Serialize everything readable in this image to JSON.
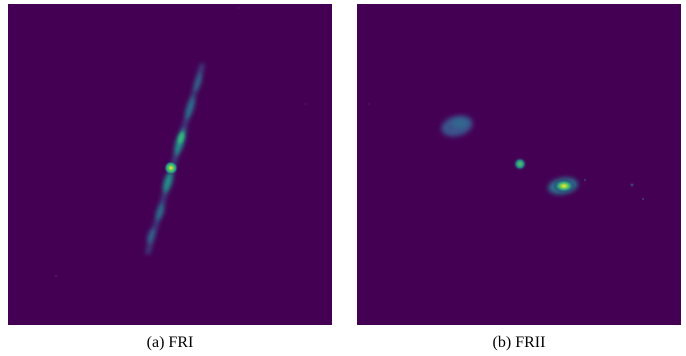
{
  "figure": {
    "panels": [
      {
        "caption": "(a) FRI"
      },
      {
        "caption": "(b) FRII"
      }
    ],
    "colormap": {
      "background": "#440154",
      "faint": "#3b528b",
      "mid": "#21918c",
      "bright": "#5ec962",
      "peak": "#fde725"
    }
  }
}
